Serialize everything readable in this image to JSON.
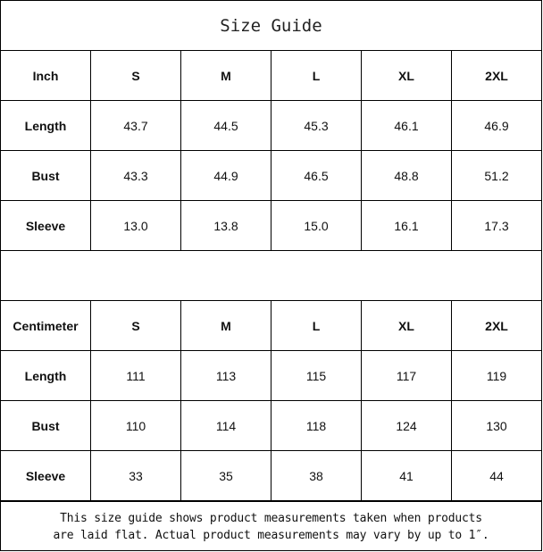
{
  "title": "Size Guide",
  "tables": [
    {
      "headers": [
        "Inch",
        "S",
        "M",
        "L",
        "XL",
        "2XL"
      ],
      "rows": [
        [
          "Length",
          "43.7",
          "44.5",
          "45.3",
          "46.1",
          "46.9"
        ],
        [
          "Bust",
          "43.3",
          "44.9",
          "46.5",
          "48.8",
          "51.2"
        ],
        [
          "Sleeve",
          "13.0",
          "13.8",
          "15.0",
          "16.1",
          "17.3"
        ]
      ]
    },
    {
      "headers": [
        "Centimeter",
        "S",
        "M",
        "L",
        "XL",
        "2XL"
      ],
      "rows": [
        [
          "Length",
          "111",
          "113",
          "115",
          "117",
          "119"
        ],
        [
          "Bust",
          "110",
          "114",
          "118",
          "124",
          "130"
        ],
        [
          "Sleeve",
          "33",
          "35",
          "38",
          "41",
          "44"
        ]
      ]
    }
  ],
  "note": {
    "line1": "This size guide shows product measurements taken when products",
    "line2": "are laid flat. Actual product measurements may vary by up to 1″."
  }
}
